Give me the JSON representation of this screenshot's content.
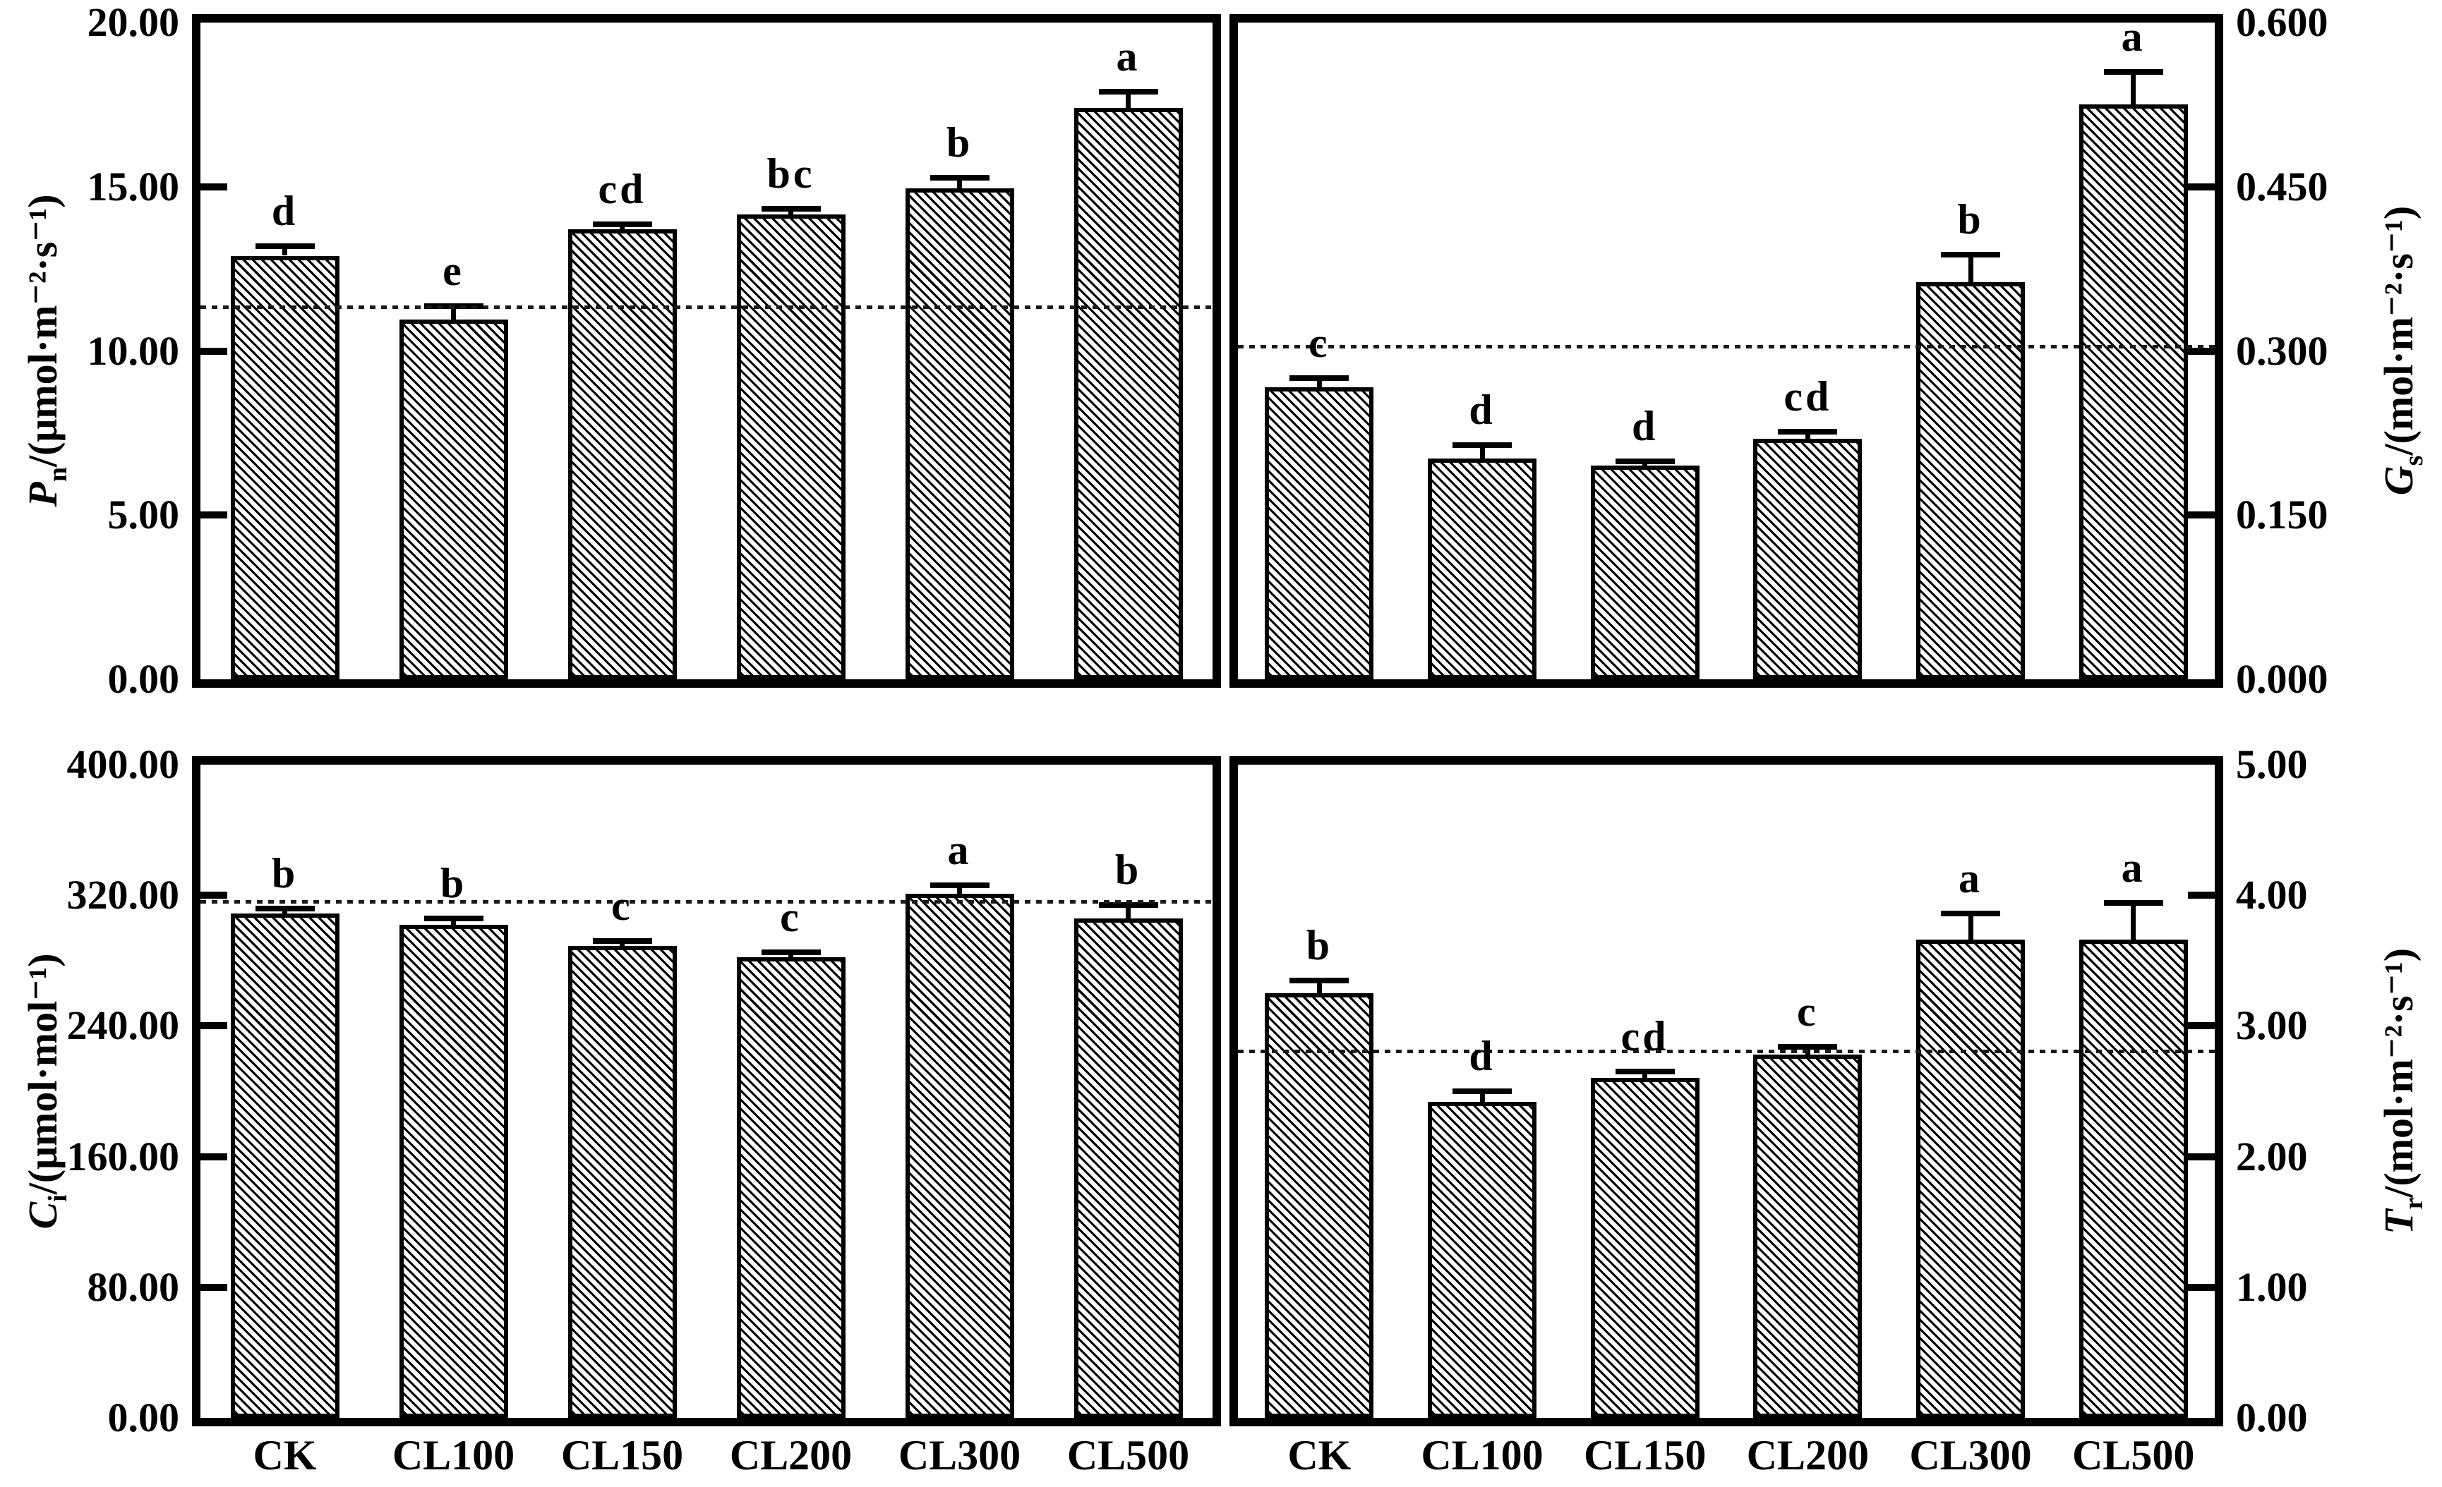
{
  "figure": {
    "background": "#ffffff",
    "ink_color": "#000000",
    "categories": [
      "CK",
      "CL100",
      "CL150",
      "CL200",
      "CL300",
      "CL500"
    ],
    "bar_fill": "white-with-black-diagonal-hatch"
  },
  "chart_data": [
    {
      "id": "Pn",
      "type": "bar",
      "panel": "top-left",
      "axis_side": "left",
      "ylabel": {
        "var": "P",
        "sub": "n",
        "unit": "/(μmol·m⁻²·s⁻¹)"
      },
      "categories": [
        "CK",
        "CL100",
        "CL150",
        "CL200",
        "CL300",
        "CL500"
      ],
      "values": [
        12.9,
        10.95,
        13.7,
        14.15,
        14.95,
        17.4
      ],
      "errors": [
        0.3,
        0.42,
        0.15,
        0.18,
        0.32,
        0.5
      ],
      "letters": [
        "d",
        "e",
        "cd",
        "bc",
        "b",
        "a"
      ],
      "ylim": [
        0,
        20
      ],
      "yticks": [
        {
          "value": 20,
          "label": "20.00"
        },
        {
          "value": 15,
          "label": "15.00"
        },
        {
          "value": 10,
          "label": "10.00"
        },
        {
          "value": 5,
          "label": "5.00"
        },
        {
          "value": 0,
          "label": "0.00"
        }
      ],
      "refline": 11.35,
      "grid": false,
      "bar_hatch": "diagonal-down"
    },
    {
      "id": "Gs",
      "type": "bar",
      "panel": "top-right",
      "axis_side": "right",
      "ylabel": {
        "var": "G",
        "sub": "s",
        "unit": "/(mol·m⁻²·s⁻¹)"
      },
      "categories": [
        "CK",
        "CL100",
        "CL150",
        "CL200",
        "CL300",
        "CL500"
      ],
      "values": [
        0.267,
        0.202,
        0.195,
        0.22,
        0.363,
        0.525
      ],
      "errors": [
        0.008,
        0.012,
        0.004,
        0.006,
        0.025,
        0.03
      ],
      "letters": [
        "c",
        "d",
        "d",
        "cd",
        "b",
        "a"
      ],
      "ylim": [
        0,
        0.6
      ],
      "yticks": [
        {
          "value": 0.6,
          "label": "0.600"
        },
        {
          "value": 0.45,
          "label": "0.450"
        },
        {
          "value": 0.3,
          "label": "0.300"
        },
        {
          "value": 0.15,
          "label": "0.150"
        },
        {
          "value": 0,
          "label": "0.000"
        }
      ],
      "refline": 0.304,
      "grid": false,
      "bar_hatch": "diagonal-down"
    },
    {
      "id": "Ci",
      "type": "bar",
      "panel": "bottom-left",
      "axis_side": "left",
      "ylabel": {
        "var": "C",
        "sub": "i",
        "unit": "/(μmol·mol⁻¹)"
      },
      "categories": [
        "CK",
        "CL100",
        "CL150",
        "CL200",
        "CL300",
        "CL500"
      ],
      "values": [
        309,
        302,
        289,
        282,
        321,
        306
      ],
      "errors": [
        3,
        4,
        3,
        3,
        5,
        8
      ],
      "letters": [
        "b",
        "b",
        "c",
        "c",
        "a",
        "b"
      ],
      "ylim": [
        0,
        400
      ],
      "yticks": [
        {
          "value": 400,
          "label": "400.00"
        },
        {
          "value": 320,
          "label": "320.00"
        },
        {
          "value": 240,
          "label": "240.00"
        },
        {
          "value": 160,
          "label": "160.00"
        },
        {
          "value": 80,
          "label": "80.00"
        },
        {
          "value": 0,
          "label": "0.00"
        }
      ],
      "refline": 316,
      "grid": false,
      "bar_hatch": "diagonal-down"
    },
    {
      "id": "Tr",
      "type": "bar",
      "panel": "bottom-right",
      "axis_side": "right",
      "ylabel": {
        "var": "T",
        "sub": "r",
        "unit": "/(mol·m⁻²·s⁻¹)"
      },
      "categories": [
        "CK",
        "CL100",
        "CL150",
        "CL200",
        "CL300",
        "CL500"
      ],
      "values": [
        3.25,
        2.42,
        2.6,
        2.78,
        3.66,
        3.66
      ],
      "errors": [
        0.1,
        0.08,
        0.05,
        0.06,
        0.2,
        0.28
      ],
      "letters": [
        "b",
        "d",
        "cd",
        "c",
        "a",
        "a"
      ],
      "ylim": [
        0,
        5
      ],
      "yticks": [
        {
          "value": 5,
          "label": "5.00"
        },
        {
          "value": 4,
          "label": "4.00"
        },
        {
          "value": 3,
          "label": "3.00"
        },
        {
          "value": 2,
          "label": "2.00"
        },
        {
          "value": 1,
          "label": "1.00"
        },
        {
          "value": 0,
          "label": "0.00"
        }
      ],
      "refline": 2.81,
      "grid": false,
      "bar_hatch": "diagonal-down"
    }
  ]
}
